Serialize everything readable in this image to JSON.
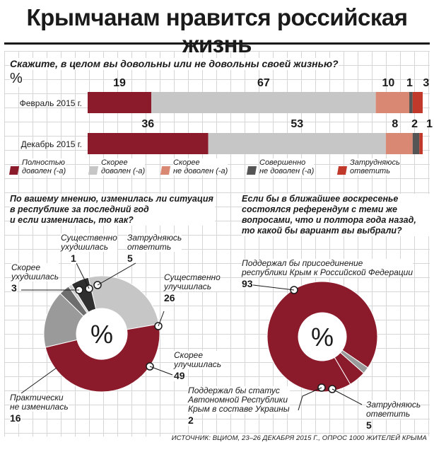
{
  "title": "Крымчанам нравится российская жизнь",
  "question1": "Скажите, в целом вы довольны или не довольны своей жизнью?",
  "percent_sign": "%",
  "legend": [
    {
      "label": "Полностью\nдоволен (-а)",
      "color": "#8b1a2b"
    },
    {
      "label": "Скорее\nдоволен (-а)",
      "color": "#c6c6c6"
    },
    {
      "label": "Скорее\nне доволен (-а)",
      "color": "#d98874"
    },
    {
      "label": "Совершенно\nне доволен (-а)",
      "color": "#555555"
    },
    {
      "label": "Затрудняюсь\nответить",
      "color": "#c0392b"
    }
  ],
  "question2": "По вашему мнению, изменилась ли ситуация\nв республике за последний год\nи если изменилась, то как?",
  "question3": "Если бы в ближайшее воскресенье\nсостоялся референдум с теми же\nвопросами, что и полтора года назад,\nто какой бы вариант вы выбрали?",
  "donut1_labels": {
    "substantially_worse": "Существенно\nухудшилась",
    "no_answer": "Затрудняюсь\nответить",
    "somewhat_worse": "Скорее\nухудшилась",
    "substantially_better": "Существенно\nулучшилась",
    "somewhat_better": "Скорее\nулучшилась",
    "not_changed": "Практически\nне изменилась"
  },
  "donut2_labels": {
    "russia": "Поддержал бы присоединение\nреспублики Крым к Российской Федерации",
    "ukraine": "Поддержал бы статус\nАвтономной Республики\nКрым в составе Украины",
    "no_answer": "Затрудняюсь\nответить"
  },
  "donut_center": "%",
  "source": "ИСТОЧНИК: ВЦИОМ, 23–26 ДЕКАБРЯ 2015 Г., ОПРОС 1000 ЖИТЕЛЕЙ КРЫМА",
  "chart_data": [
    {
      "type": "bar",
      "orientation": "horizontal-stacked",
      "title": "Скажите, в целом вы довольны или не довольны своей жизнью?",
      "unit": "%",
      "categories": [
        "Февраль 2015 г.",
        "Декабрь 2015 г."
      ],
      "series": [
        {
          "name": "Полностью доволен (-а)",
          "values": [
            19,
            36
          ],
          "color": "#8b1a2b"
        },
        {
          "name": "Скорее доволен (-а)",
          "values": [
            67,
            53
          ],
          "color": "#c6c6c6"
        },
        {
          "name": "Скорее не доволен (-а)",
          "values": [
            10,
            8
          ],
          "color": "#d98874"
        },
        {
          "name": "Совершенно не доволен (-а)",
          "values": [
            1,
            2
          ],
          "color": "#555555"
        },
        {
          "name": "Затрудняюсь ответить",
          "values": [
            3,
            1
          ],
          "color": "#c0392b"
        }
      ]
    },
    {
      "type": "pie",
      "subtype": "donut",
      "title": "По вашему мнению, изменилась ли ситуация в республике за последний год и если изменилась, то как?",
      "unit": "%",
      "slices": [
        {
          "name": "Существенно улучшилась",
          "value": 26,
          "color": "#c6c6c6"
        },
        {
          "name": "Скорее улучшилась",
          "value": 49,
          "color": "#8b1a2b"
        },
        {
          "name": "Практически не изменилась",
          "value": 16,
          "color": "#9a9a9a"
        },
        {
          "name": "Скорее ухудшилась",
          "value": 3,
          "color": "#6e6e6e"
        },
        {
          "name": "Существенно ухудшилась",
          "value": 1,
          "color": "#d0d0d0"
        },
        {
          "name": "Затрудняюсь ответить",
          "value": 5,
          "color": "#2f2f2f"
        }
      ]
    },
    {
      "type": "pie",
      "subtype": "donut",
      "title": "Если бы в ближайшее воскресенье состоялся референдум с теми же вопросами, что и полтора года назад, то какой бы вариант вы выбрали?",
      "unit": "%",
      "slices": [
        {
          "name": "Поддержал бы присоединение республики Крым к Российской Федерации",
          "value": 93,
          "color": "#8b1a2b"
        },
        {
          "name": "Поддержал бы статус Автономной Республики Крым в составе Украины",
          "value": 2,
          "color": "#9a9a9a"
        },
        {
          "name": "Затрудняюсь ответить",
          "value": 5,
          "color": "#8b1a2b"
        }
      ]
    }
  ]
}
